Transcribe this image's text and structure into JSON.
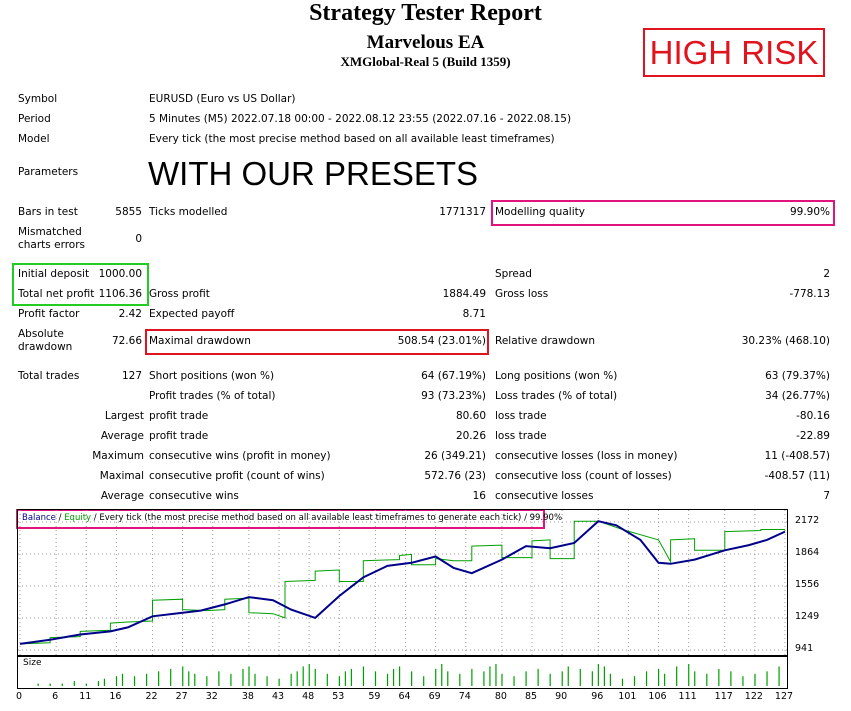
{
  "header": {
    "title": "Strategy Tester Report",
    "ea_name": "Marvelous EA",
    "server": "XMGlobal-Real 5 (Build 1359)",
    "risk_badge": "HIGH RISK",
    "presets_note": "WITH OUR PRESETS"
  },
  "info": {
    "symbol_label": "Symbol",
    "symbol_value": "EURUSD (Euro vs US Dollar)",
    "period_label": "Period",
    "period_value": "5 Minutes (M5) 2022.07.18 00:00 - 2022.08.12 23:55 (2022.07.16 - 2022.08.15)",
    "model_label": "Model",
    "model_value": "Every tick (the most precise method based on all available least timeframes)",
    "parameters_label": "Parameters"
  },
  "stats": {
    "bars_label": "Bars in test",
    "bars_value": "5855",
    "ticks_label": "Ticks modelled",
    "ticks_value": "1771317",
    "quality_label": "Modelling quality",
    "quality_value": "99.90%",
    "mismatch_label": "Mismatched charts errors",
    "mismatch_value": "0",
    "deposit_label": "Initial deposit",
    "deposit_value": "1000.00",
    "spread_label": "Spread",
    "spread_value": "2",
    "netprofit_label": "Total net profit",
    "netprofit_value": "1106.36",
    "grossprofit_label": "Gross profit",
    "grossprofit_value": "1884.49",
    "grossloss_label": "Gross loss",
    "grossloss_value": "-778.13",
    "pf_label": "Profit factor",
    "pf_value": "2.42",
    "payoff_label": "Expected payoff",
    "payoff_value": "8.71",
    "absdd_label": "Absolute drawdown",
    "absdd_value": "72.66",
    "maxdd_label": "Maximal drawdown",
    "maxdd_value": "508.54 (23.01%)",
    "reldd_label": "Relative drawdown",
    "reldd_value": "30.23% (468.10)",
    "trades_label": "Total trades",
    "trades_value": "127",
    "short_label": "Short positions (won %)",
    "short_value": "64 (67.19%)",
    "long_label": "Long positions (won %)",
    "long_value": "63 (79.37%)",
    "profit_trades_label": "Profit trades (% of total)",
    "profit_trades_value": "93 (73.23%)",
    "loss_trades_label": "Loss trades (% of total)",
    "loss_trades_value": "34 (26.77%)",
    "largest_label": "Largest",
    "largest_pt_label": "profit trade",
    "largest_pt_value": "80.60",
    "largest_lt_label": "loss trade",
    "largest_lt_value": "-80.16",
    "average_label": "Average",
    "average_pt_label": "profit trade",
    "average_pt_value": "20.26",
    "average_lt_label": "loss trade",
    "average_lt_value": "-22.89",
    "maximum_label": "Maximum",
    "max_cw_label": "consecutive wins (profit in money)",
    "max_cw_value": "26 (349.21)",
    "max_cl_label": "consecutive losses (loss in money)",
    "max_cl_value": "11 (-408.57)",
    "maximal_label": "Maximal",
    "mx_cp_label": "consecutive profit (count of wins)",
    "mx_cp_value": "572.76 (23)",
    "mx_cl_label": "consecutive loss (count of losses)",
    "mx_cl_value": "-408.57 (11)",
    "avg2_label": "Average",
    "avg_cw_label": "consecutive wins",
    "avg_cw_value": "16",
    "avg_cl_label": "consecutive losses",
    "avg_cl_value": "7"
  },
  "chart_legend": {
    "balance": "Balance",
    "sep1": " / ",
    "equity": "Equity",
    "rest": " / Every tick (the most precise method based on all available least timeframes to generate each tick) / 99.90%"
  },
  "colors": {
    "balance": "#00008b",
    "equity": "#00a000",
    "risk": "#e0141e",
    "highlight_pink": "#e0147a",
    "highlight_green": "#22cc22",
    "highlight_red": "#e0141e"
  },
  "size_label": "Size",
  "chart_data": {
    "type": "line",
    "x": [
      0,
      6,
      11,
      16,
      22,
      27,
      32,
      38,
      43,
      48,
      53,
      59,
      64,
      69,
      74,
      80,
      85,
      90,
      96,
      101,
      106,
      111,
      117,
      122,
      127
    ],
    "x_ticks": [
      "0",
      "6",
      "11",
      "16",
      "22",
      "27",
      "32",
      "38",
      "43",
      "48",
      "53",
      "59",
      "64",
      "69",
      "74",
      "80",
      "85",
      "90",
      "96",
      "101",
      "106",
      "111",
      "117",
      "122",
      "127"
    ],
    "y_ticks": [
      "2172",
      "1864",
      "1556",
      "1249",
      "941"
    ],
    "ylim": [
      941,
      2172
    ],
    "xlim": [
      0,
      127
    ],
    "series": [
      {
        "name": "Balance",
        "color": "#00008b",
        "x": [
          0,
          5,
          10,
          15,
          18,
          22,
          27,
          30,
          34,
          38,
          42,
          45,
          49,
          53,
          57,
          61,
          65,
          69,
          72,
          75,
          80,
          84,
          88,
          92,
          96,
          99,
          103,
          106,
          108,
          112,
          117,
          121,
          124,
          127
        ],
        "y": [
          1000,
          1040,
          1090,
          1120,
          1160,
          1265,
          1300,
          1320,
          1380,
          1450,
          1420,
          1330,
          1250,
          1460,
          1640,
          1750,
          1780,
          1840,
          1730,
          1680,
          1810,
          1940,
          1920,
          1970,
          2180,
          2140,
          2000,
          1780,
          1770,
          1810,
          1900,
          1950,
          2000,
          2080
        ]
      },
      {
        "name": "Equity",
        "color": "#00a000",
        "x": [
          0,
          5,
          5,
          10,
          10,
          15,
          15,
          18,
          22,
          22,
          27,
          27,
          31,
          34,
          34,
          38,
          38,
          42,
          44,
          44,
          49,
          49,
          53,
          53,
          57,
          57,
          63,
          63,
          65,
          65,
          69,
          69,
          72,
          75,
          75,
          80,
          80,
          85,
          85,
          88,
          88,
          92,
          92,
          96,
          100,
          106,
          108,
          108,
          112,
          112,
          117,
          117,
          123,
          123,
          127
        ],
        "y": [
          1000,
          1010,
          1060,
          1070,
          1120,
          1130,
          1200,
          1210,
          1220,
          1420,
          1430,
          1330,
          1320,
          1330,
          1430,
          1440,
          1300,
          1290,
          1250,
          1600,
          1610,
          1700,
          1710,
          1600,
          1600,
          1800,
          1810,
          1850,
          1860,
          1760,
          1760,
          1820,
          1800,
          1800,
          1940,
          1950,
          1830,
          1830,
          1990,
          2000,
          1820,
          1820,
          2180,
          2180,
          2100,
          2000,
          1790,
          2000,
          2010,
          1900,
          1900,
          2080,
          2090,
          2100,
          2100
        ]
      }
    ],
    "size_series": {
      "x": [
        3,
        5,
        7,
        9,
        11,
        13,
        14,
        16,
        17,
        19,
        21,
        23,
        25,
        27,
        28,
        29,
        31,
        33,
        35,
        37,
        38,
        39,
        41,
        43,
        45,
        46,
        47,
        48,
        49,
        51,
        53,
        54,
        55,
        57,
        59,
        61,
        62,
        63,
        65,
        67,
        69,
        70,
        71,
        73,
        75,
        77,
        78,
        79,
        80,
        82,
        84,
        86,
        88,
        90,
        91,
        93,
        95,
        96,
        97,
        98,
        100,
        102,
        104,
        106,
        107,
        109,
        111,
        112,
        114,
        116,
        118,
        120,
        122,
        124,
        126
      ],
      "values": [
        1,
        1,
        1,
        2,
        1,
        2,
        3,
        4,
        5,
        4,
        5,
        6,
        7,
        8,
        6,
        5,
        4,
        6,
        5,
        7,
        8,
        5,
        4,
        3,
        5,
        6,
        8,
        9,
        7,
        5,
        4,
        6,
        7,
        8,
        6,
        5,
        7,
        8,
        6,
        4,
        7,
        9,
        6,
        5,
        7,
        6,
        8,
        9,
        5,
        4,
        6,
        7,
        5,
        6,
        8,
        7,
        6,
        9,
        8,
        5,
        3,
        4,
        6,
        7,
        5,
        8,
        9,
        6,
        5,
        7,
        6,
        4,
        5,
        6,
        8
      ]
    }
  }
}
